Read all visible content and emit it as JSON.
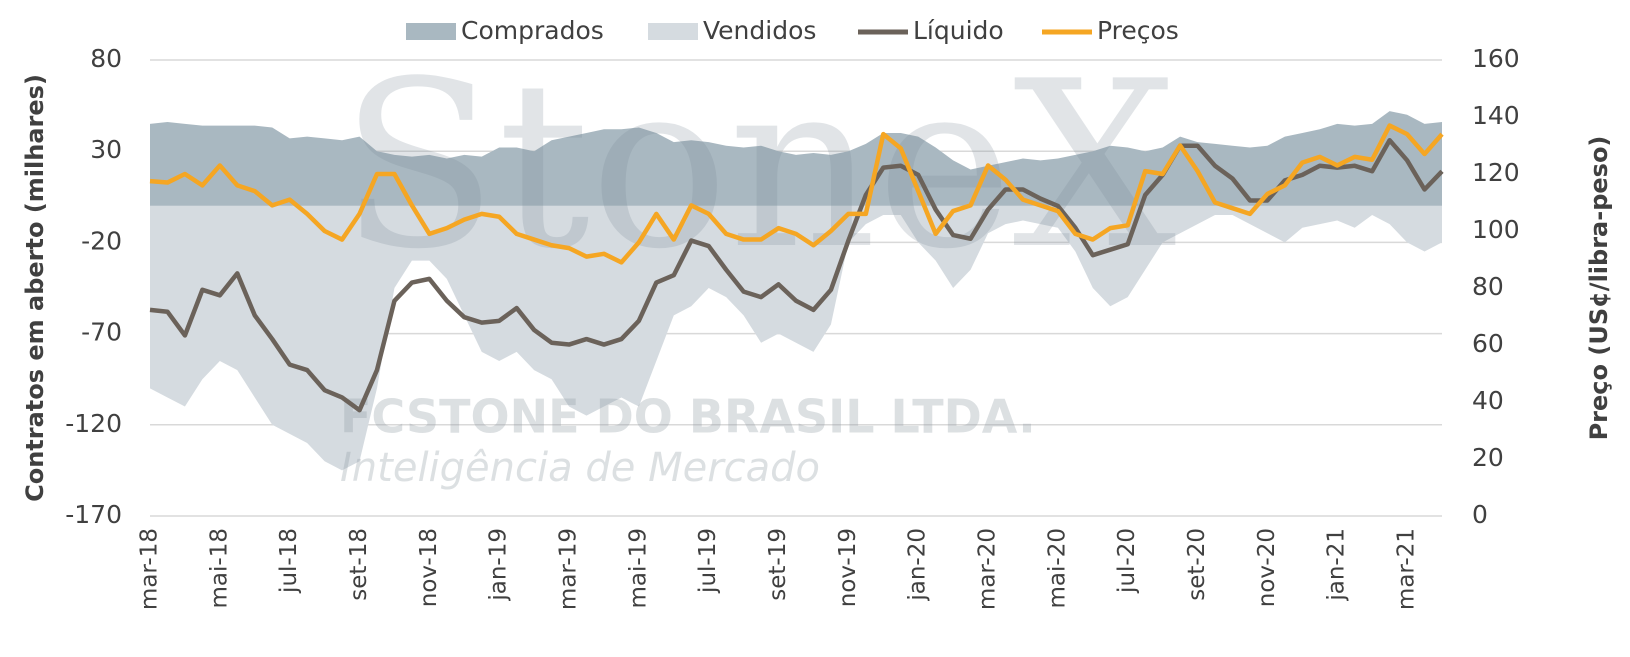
{
  "chart_data": {
    "type": "line",
    "watermark": [
      "StoneX",
      "FCSTONE DO BRASIL LTDA.",
      "Inteligência de Mercado"
    ],
    "ylabel": "Contratos em aberto (milhares)",
    "y2label": "Preço (US¢/libra-peso)",
    "ylim": [
      -170,
      80
    ],
    "yticks": [
      -170,
      -120,
      -70,
      -20,
      30,
      80
    ],
    "y2lim": [
      0,
      160
    ],
    "y2ticks": [
      0,
      20,
      40,
      60,
      80,
      100,
      120,
      140,
      160
    ],
    "grid": true,
    "categories": [
      "mar-18",
      null,
      null,
      null,
      "mai-18",
      null,
      null,
      null,
      "jul-18",
      null,
      null,
      null,
      "set-18",
      null,
      null,
      null,
      "nov-18",
      null,
      null,
      null,
      "jan-19",
      null,
      null,
      null,
      "mar-19",
      null,
      null,
      null,
      "mai-19",
      null,
      null,
      null,
      "jul-19",
      null,
      null,
      null,
      "set-19",
      null,
      null,
      null,
      "nov-19",
      null,
      null,
      null,
      "jan-20",
      null,
      null,
      null,
      "mar-20",
      null,
      null,
      null,
      "mai-20",
      null,
      null,
      null,
      "jul-20",
      null,
      null,
      null,
      "set-20",
      null,
      null,
      null,
      "nov-20",
      null,
      null,
      null,
      "jan-21",
      null,
      null,
      null,
      "mar-21",
      null,
      null
    ],
    "series": [
      {
        "name": "Comprados",
        "kind": "area",
        "color": "#a9b8c1",
        "values": [
          45,
          46,
          45,
          44,
          44,
          44,
          44,
          43,
          37,
          38,
          37,
          36,
          38,
          30,
          28,
          27,
          28,
          26,
          28,
          27,
          32,
          32,
          30,
          36,
          38,
          40,
          42,
          42,
          43,
          40,
          35,
          36,
          35,
          33,
          32,
          33,
          30,
          28,
          29,
          28,
          30,
          34,
          40,
          40,
          38,
          32,
          25,
          20,
          22,
          24,
          26,
          25,
          26,
          28,
          30,
          33,
          32,
          30,
          32,
          38,
          35,
          34,
          33,
          32,
          33,
          38,
          40,
          42,
          45,
          44,
          45,
          52,
          50,
          45,
          46
        ]
      },
      {
        "name": "Vendidos",
        "kind": "area",
        "color": "#d5dbe0",
        "values": [
          -100,
          -105,
          -110,
          -95,
          -85,
          -90,
          -105,
          -120,
          -125,
          -130,
          -140,
          -145,
          -140,
          -100,
          -45,
          -30,
          -30,
          -40,
          -60,
          -80,
          -85,
          -80,
          -90,
          -95,
          -110,
          -115,
          -110,
          -105,
          -110,
          -85,
          -60,
          -55,
          -45,
          -50,
          -60,
          -75,
          -70,
          -75,
          -80,
          -65,
          -20,
          -10,
          -5,
          -5,
          -20,
          -30,
          -45,
          -35,
          -15,
          -10,
          -8,
          -10,
          -12,
          -25,
          -45,
          -55,
          -50,
          -35,
          -20,
          -15,
          -10,
          -5,
          -5,
          -10,
          -15,
          -20,
          -12,
          -10,
          -8,
          -12,
          -5,
          -10,
          -20,
          -25,
          -20
        ]
      },
      {
        "name": "Líquido",
        "kind": "line",
        "color": "#6b625a",
        "values": [
          -57,
          -58,
          -71,
          -46,
          -49,
          -37,
          -60,
          -73,
          -87,
          -90,
          -101,
          -105,
          -112,
          -90,
          -52,
          -42,
          -40,
          -52,
          -61,
          -64,
          -63,
          -56,
          -68,
          -75,
          -76,
          -73,
          -76,
          -73,
          -63,
          -42,
          -38,
          -19,
          -22,
          -35,
          -47,
          -50,
          -43,
          -52,
          -57,
          -46,
          -19,
          6,
          21,
          22,
          17,
          -2,
          -16,
          -18,
          -2,
          9,
          9,
          4,
          0,
          -12,
          -27,
          -24,
          -21,
          6,
          17,
          33,
          33,
          22,
          15,
          3,
          3,
          14,
          17,
          22,
          21,
          22,
          19,
          36,
          25,
          9,
          19
        ]
      },
      {
        "name": "Preços",
        "kind": "line",
        "axis": "y2",
        "color": "#f5a623",
        "values": [
          117.5,
          117,
          120,
          116,
          123,
          116,
          114,
          109,
          111,
          106,
          100,
          97,
          106,
          120,
          120,
          109,
          99,
          101,
          104,
          106,
          105,
          99,
          97,
          95,
          94,
          91,
          92,
          89,
          96,
          106,
          97,
          109,
          106,
          99,
          97,
          97,
          101,
          99,
          95,
          100,
          106,
          106,
          134,
          129,
          114,
          99,
          107,
          109,
          123,
          118,
          111,
          109,
          107,
          99,
          97,
          101,
          102,
          121,
          120,
          130,
          121,
          110,
          108,
          106,
          113,
          116,
          124,
          126,
          123,
          126,
          125,
          137,
          134,
          127,
          134
        ]
      }
    ]
  }
}
